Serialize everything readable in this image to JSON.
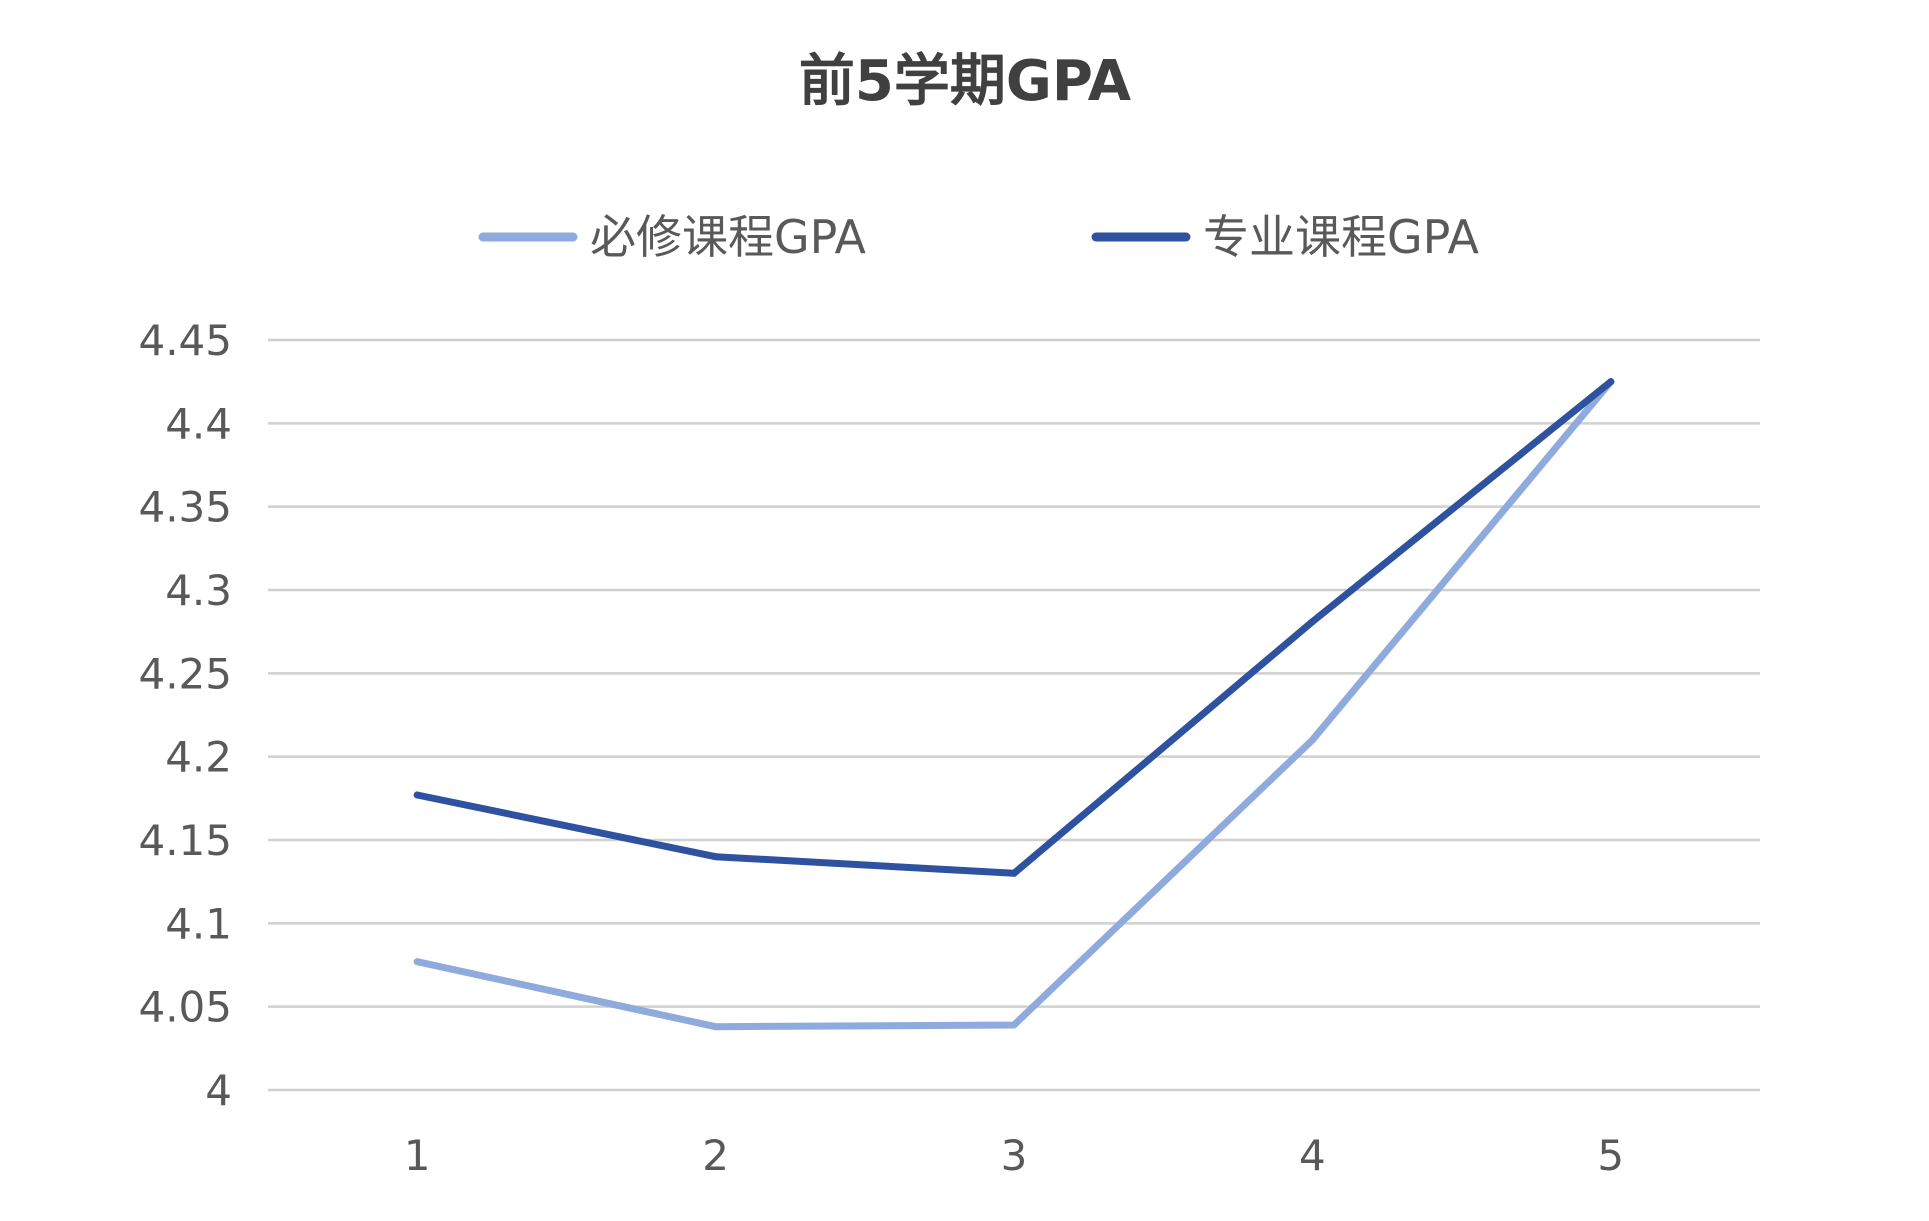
{
  "chart_data": {
    "type": "line",
    "title": "前5学期GPA",
    "xlabel": "",
    "ylabel": "",
    "categories": [
      "1",
      "2",
      "3",
      "4",
      "5"
    ],
    "ylim": [
      4,
      4.45
    ],
    "yticks": [
      "4",
      "4.05",
      "4.1",
      "4.15",
      "4.2",
      "4.25",
      "4.3",
      "4.35",
      "4.4",
      "4.45"
    ],
    "grid": true,
    "legend": "top-center",
    "series": [
      {
        "name": "必修课程GPA",
        "color": "#8faadc",
        "values": [
          4.077,
          4.038,
          4.039,
          4.21,
          4.425
        ]
      },
      {
        "name": "专业课程GPA",
        "color": "#2f52a0",
        "values": [
          4.177,
          4.14,
          4.13,
          4.281,
          4.425
        ]
      }
    ]
  }
}
